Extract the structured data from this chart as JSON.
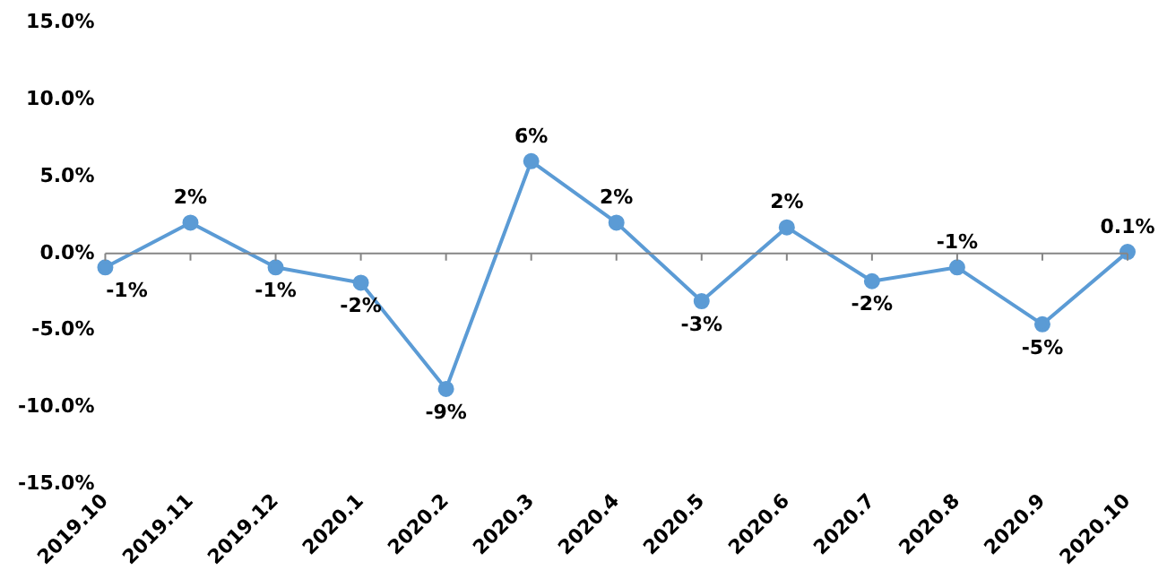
{
  "chart_data": {
    "type": "line",
    "categories": [
      "2019.10",
      "2019.11",
      "2019.12",
      "2020.1",
      "2020.2",
      "2020.3",
      "2020.4",
      "2020.5",
      "2020.6",
      "2020.7",
      "2020.8",
      "2020.9",
      "2020.10"
    ],
    "series": [
      {
        "color": "#5b9bd5",
        "values": [
          -0.9,
          2.0,
          -0.9,
          -1.9,
          -8.8,
          6.0,
          2.0,
          -3.1,
          1.7,
          -1.8,
          -0.9,
          -4.6,
          0.1
        ],
        "value_labels": [
          "-1%",
          "2%",
          "-1%",
          "-2%",
          "-9%",
          "6%",
          "2%",
          "-3%",
          "2%",
          "-2%",
          "-1%",
          "-5%",
          "0.1%"
        ]
      }
    ],
    "ylim": [
      -15,
      15
    ],
    "yticks": [
      {
        "value": -15,
        "label": "-15.0%"
      },
      {
        "value": -10,
        "label": "-10.0%"
      },
      {
        "value": -5,
        "label": "-5.0%"
      },
      {
        "value": 0,
        "label": "0.0%"
      },
      {
        "value": 5,
        "label": "5.0%"
      },
      {
        "value": 10,
        "label": "10.0%"
      },
      {
        "value": 15,
        "label": "15.0%"
      }
    ],
    "legend": false,
    "marker": "circle",
    "line_style": "solid"
  }
}
